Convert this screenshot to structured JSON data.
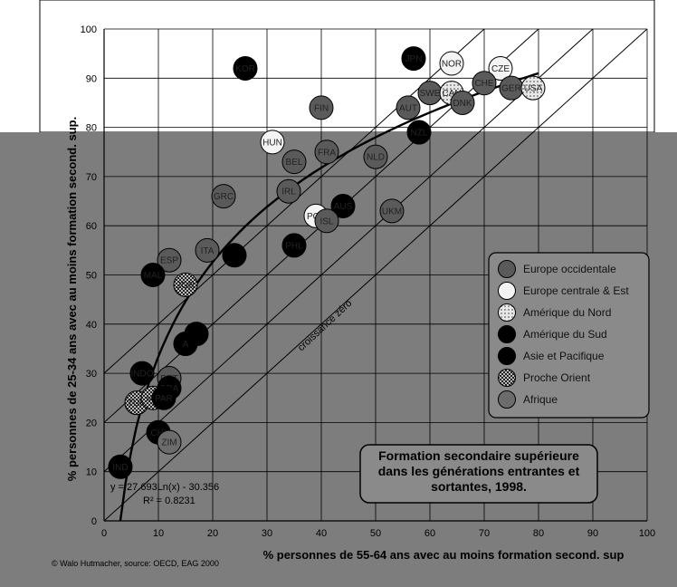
{
  "chart_data": {
    "type": "scatter",
    "title": "Formation secondaire supérieure\ndans les générations entrantes et\nsortantes, 1998.",
    "xlabel": "% personnes de 55-64 ans avec au moins formation second. sup",
    "ylabel": "% personnes de 25-34 ans avec au moins formation second. sup.",
    "xlim": [
      0,
      100
    ],
    "ylim": [
      0,
      100
    ],
    "xticks": [
      0,
      10,
      20,
      30,
      40,
      50,
      60,
      70,
      80,
      90,
      100
    ],
    "yticks": [
      0,
      10,
      20,
      30,
      40,
      50,
      60,
      70,
      80,
      90,
      100
    ],
    "grid": true,
    "legend_position": "right",
    "zero_growth_label": "croissance zéro",
    "trend_equation": "y = 27.693Ln(x) - 30.356",
    "trend_r2": "R² = 0.8231",
    "trend": {
      "a": 27.693,
      "b": -30.356,
      "x_from": 3,
      "x_to": 80
    },
    "diagonals": [
      0,
      10,
      20,
      30
    ],
    "groups": [
      {
        "name": "Europe occidentale",
        "style": "dark-grey"
      },
      {
        "name": "Europe centrale & Est",
        "style": "white"
      },
      {
        "name": "Amérique du Nord",
        "style": "dotted"
      },
      {
        "name": "Amérique du Sud",
        "style": "black"
      },
      {
        "name": "Asie et Pacifique",
        "style": "black"
      },
      {
        "name": "Proche Orient",
        "style": "checker"
      },
      {
        "name": "Afrique",
        "style": "grey"
      }
    ],
    "points": [
      {
        "label": "KOR",
        "x": 26,
        "y": 92,
        "group": 4
      },
      {
        "label": "JPN",
        "x": 57,
        "y": 94,
        "group": 4
      },
      {
        "label": "NOR",
        "x": 64,
        "y": 93,
        "group": 1
      },
      {
        "label": "CZE",
        "x": 73,
        "y": 92,
        "group": 1
      },
      {
        "label": "CHE",
        "x": 70,
        "y": 89,
        "group": 0
      },
      {
        "label": "GER",
        "x": 75,
        "y": 88,
        "group": 0
      },
      {
        "label": "USA",
        "x": 79,
        "y": 88,
        "group": 2
      },
      {
        "label": "SWE",
        "x": 60,
        "y": 87,
        "group": 0
      },
      {
        "label": "CAN",
        "x": 64,
        "y": 87,
        "group": 2
      },
      {
        "label": "DNK",
        "x": 66,
        "y": 85,
        "group": 0
      },
      {
        "label": "AUT",
        "x": 56,
        "y": 84,
        "group": 0
      },
      {
        "label": "FIN",
        "x": 40,
        "y": 84,
        "group": 0
      },
      {
        "label": "NZL",
        "x": 58,
        "y": 79,
        "group": 4
      },
      {
        "label": "HUN",
        "x": 31,
        "y": 77,
        "group": 1
      },
      {
        "label": "FRA",
        "x": 41,
        "y": 75,
        "group": 0
      },
      {
        "label": "BEL",
        "x": 35,
        "y": 73,
        "group": 0
      },
      {
        "label": "NLD",
        "x": 50,
        "y": 74,
        "group": 0
      },
      {
        "label": "GRC",
        "x": 22,
        "y": 66,
        "group": 0
      },
      {
        "label": "IRL",
        "x": 34,
        "y": 67,
        "group": 0
      },
      {
        "label": "AUS",
        "x": 44,
        "y": 64,
        "group": 4
      },
      {
        "label": "POL",
        "x": 39,
        "y": 62,
        "group": 1
      },
      {
        "label": "ISL",
        "x": 41,
        "y": 61,
        "group": 0
      },
      {
        "label": "UKM",
        "x": 53,
        "y": 63,
        "group": 0
      },
      {
        "label": "PHL",
        "x": 35,
        "y": 56,
        "group": 4
      },
      {
        "label": "ITA",
        "x": 19,
        "y": 55,
        "group": 0
      },
      {
        "label": "",
        "x": 24,
        "y": 54,
        "group": 4
      },
      {
        "label": "ESP",
        "x": 12,
        "y": 53,
        "group": 0
      },
      {
        "label": "MAL",
        "x": 9,
        "y": 50,
        "group": 4
      },
      {
        "label": "JOR",
        "x": 15,
        "y": 48,
        "group": 5
      },
      {
        "label": "A",
        "x": 15,
        "y": 36,
        "group": 3
      },
      {
        "label": "",
        "x": 17,
        "y": 38,
        "group": 3
      },
      {
        "label": "INDO",
        "x": 7,
        "y": 30,
        "group": 4
      },
      {
        "label": "PRT",
        "x": 12,
        "y": 29,
        "group": 0
      },
      {
        "label": "BRA",
        "x": 12,
        "y": 27,
        "group": 3
      },
      {
        "label": "TUR",
        "x": 6,
        "y": 24,
        "group": 5
      },
      {
        "label": "ME",
        "x": 9,
        "y": 25,
        "group": 5
      },
      {
        "label": "PAR",
        "x": 11,
        "y": 25,
        "group": 3
      },
      {
        "label": "CHI",
        "x": 10,
        "y": 18,
        "group": 3
      },
      {
        "label": "ZIM",
        "x": 12,
        "y": 16,
        "group": 6
      },
      {
        "label": "IND",
        "x": 3,
        "y": 11,
        "group": 4
      }
    ]
  },
  "footer": {
    "credit": "© Walo Hutmacher, source: OECD, EAG 2000"
  }
}
